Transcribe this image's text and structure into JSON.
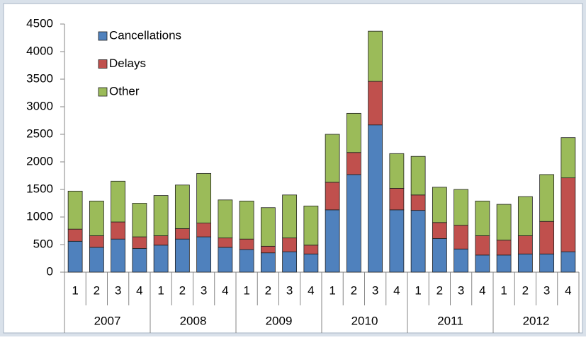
{
  "chart_data": {
    "type": "stacked_bar",
    "categories": [
      "1",
      "2",
      "3",
      "4",
      "1",
      "2",
      "3",
      "4",
      "1",
      "2",
      "3",
      "4",
      "1",
      "2",
      "3",
      "4",
      "1",
      "2",
      "3",
      "4",
      "1",
      "2",
      "3",
      "4"
    ],
    "category_groups": [
      "2007",
      "2008",
      "2009",
      "2010",
      "2011",
      "2012"
    ],
    "series": [
      {
        "name": "Cancellations",
        "color": "#4f81bd",
        "values": [
          560,
          450,
          600,
          430,
          490,
          600,
          640,
          450,
          410,
          350,
          370,
          330,
          1130,
          1770,
          2670,
          1130,
          1120,
          610,
          420,
          310,
          310,
          330,
          330,
          370
        ]
      },
      {
        "name": "Delays",
        "color": "#c0504d",
        "values": [
          220,
          210,
          310,
          210,
          170,
          190,
          250,
          170,
          190,
          120,
          250,
          160,
          500,
          400,
          790,
          390,
          280,
          290,
          430,
          350,
          270,
          330,
          590,
          1340
        ]
      },
      {
        "name": "Other",
        "color": "#9bbb59",
        "values": [
          690,
          630,
          740,
          610,
          730,
          790,
          900,
          690,
          690,
          700,
          780,
          710,
          870,
          710,
          910,
          630,
          700,
          640,
          650,
          630,
          650,
          710,
          850,
          730
        ]
      }
    ],
    "ylim": [
      0,
      4500
    ],
    "yticks": [
      0,
      500,
      1000,
      1500,
      2000,
      2500,
      3000,
      3500,
      4000,
      4500
    ],
    "grid": false,
    "legend": "top-left"
  }
}
